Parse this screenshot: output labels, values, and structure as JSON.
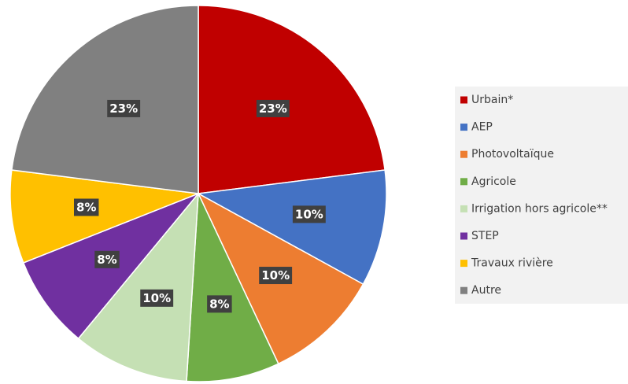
{
  "chart_data": {
    "type": "pie",
    "categories": [
      "Urbain*",
      "AEP",
      "Photovoltaïque",
      "Agricole",
      "Irrigation hors agricole**",
      "STEP",
      "Travaux rivière",
      "Autre"
    ],
    "values": [
      23,
      10,
      10,
      8,
      10,
      8,
      8,
      23
    ],
    "value_labels": [
      "23%",
      "10%",
      "10%",
      "8%",
      "10%",
      "8%",
      "8%",
      "23%"
    ],
    "colors": [
      "#c00000",
      "#4472c4",
      "#ed7d31",
      "#70ad47",
      "#c5e0b4",
      "#7030a0",
      "#ffc000",
      "#808080"
    ],
    "legend": "right"
  }
}
